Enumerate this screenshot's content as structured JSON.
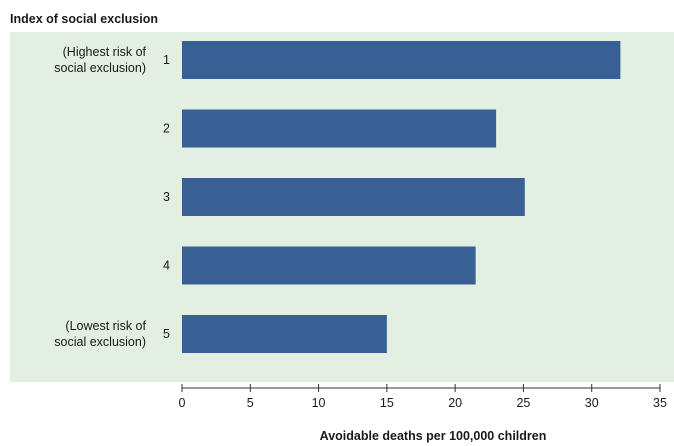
{
  "chart_data": {
    "type": "bar",
    "orientation": "horizontal",
    "title": "Index of social exclusion",
    "xlabel": "Avoidable deaths per 100,000 children",
    "ylabel": "",
    "categories": [
      "1",
      "2",
      "3",
      "4",
      "5"
    ],
    "category_notes": [
      [
        "(Highest risk of",
        "social exclusion)"
      ],
      [],
      [],
      [],
      [
        "(Lowest risk of",
        "social exclusion)"
      ]
    ],
    "values": [
      32.1,
      23.0,
      25.1,
      21.5,
      15.0
    ],
    "xlim": [
      0,
      35
    ],
    "xticks": [
      "0",
      "5",
      "10",
      "15",
      "20",
      "25",
      "30",
      "35"
    ],
    "grid": false,
    "legend": "none",
    "colors": {
      "bar": "#386094",
      "plot_background": "#e3efe2",
      "axis": "#333333"
    }
  }
}
